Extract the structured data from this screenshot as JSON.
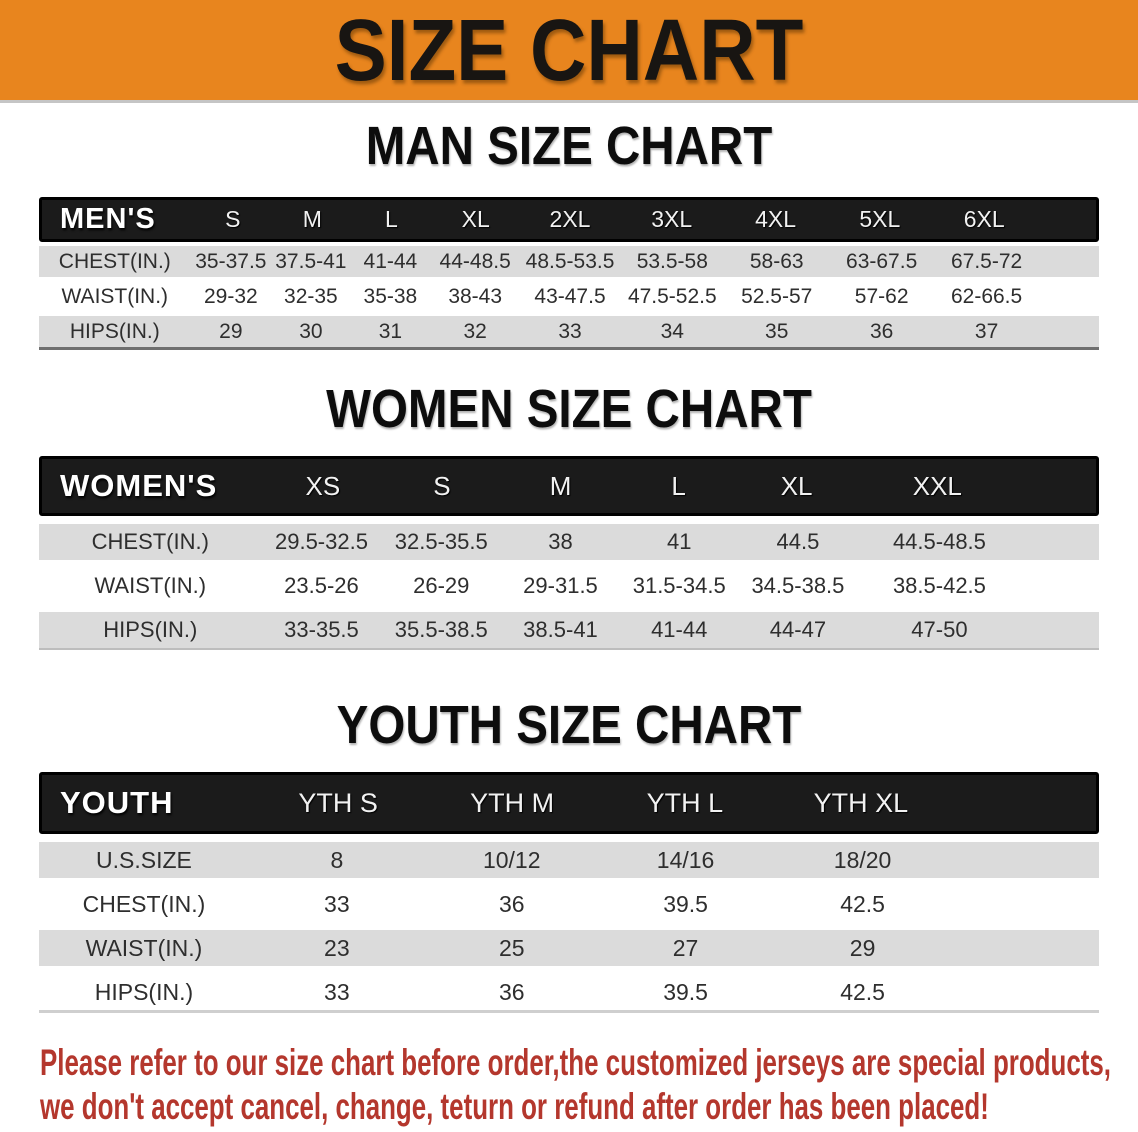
{
  "banner": {
    "title": "SIZE CHART",
    "bg_color": "#e8851e",
    "text_color": "#181512"
  },
  "colors": {
    "header_bar": "#1b1b1b",
    "row_gray": "#dbdbdb",
    "row_white": "#ffffff",
    "footer_red": "#b4372d"
  },
  "footer": {
    "line1": "Please refer to our size chart before order,the customized jerseys are special products,",
    "line2": "we don't accept cancel, change, teturn or refund after order has been placed!"
  },
  "chart_data": [
    {
      "type": "table",
      "title": "MAN SIZE CHART",
      "corner": "MEN'S",
      "columns": [
        "S",
        "M",
        "L",
        "XL",
        "2XL",
        "3XL",
        "4XL",
        "5XL",
        "6XL"
      ],
      "rows": [
        {
          "label": "CHEST(IN.)",
          "values": [
            "35-37.5",
            "37.5-41",
            "41-44",
            "44-48.5",
            "48.5-53.5",
            "53.5-58",
            "58-63",
            "63-67.5",
            "67.5-72"
          ]
        },
        {
          "label": "WAIST(IN.)",
          "values": [
            "29-32",
            "32-35",
            "35-38",
            "38-43",
            "43-47.5",
            "47.5-52.5",
            "52.5-57",
            "57-62",
            "62-66.5"
          ]
        },
        {
          "label": "HIPS(IN.)",
          "values": [
            "29",
            "30",
            "31",
            "32",
            "33",
            "34",
            "35",
            "36",
            "37"
          ]
        }
      ]
    },
    {
      "type": "table",
      "title": "WOMEN SIZE CHART",
      "corner": "WOMEN'S",
      "columns": [
        "XS",
        "S",
        "M",
        "L",
        "XL",
        "XXL"
      ],
      "rows": [
        {
          "label": "CHEST(IN.)",
          "values": [
            "29.5-32.5",
            "32.5-35.5",
            "38",
            "41",
            "44.5",
            "44.5-48.5"
          ]
        },
        {
          "label": "WAIST(IN.)",
          "values": [
            "23.5-26",
            "26-29",
            "29-31.5",
            "31.5-34.5",
            "34.5-38.5",
            "38.5-42.5"
          ]
        },
        {
          "label": "HIPS(IN.)",
          "values": [
            "33-35.5",
            "35.5-38.5",
            "38.5-41",
            "41-44",
            "44-47",
            "47-50"
          ]
        }
      ]
    },
    {
      "type": "table",
      "title": "YOUTH SIZE CHART",
      "corner": "YOUTH",
      "columns": [
        "YTH S",
        "YTH M",
        "YTH L",
        "YTH XL"
      ],
      "rows": [
        {
          "label": "U.S.SIZE",
          "values": [
            "8",
            "10/12",
            "14/16",
            "18/20"
          ]
        },
        {
          "label": "CHEST(IN.)",
          "values": [
            "33",
            "36",
            "39.5",
            "42.5"
          ]
        },
        {
          "label": "WAIST(IN.)",
          "values": [
            "23",
            "25",
            "27",
            "29"
          ]
        },
        {
          "label": "HIPS(IN.)",
          "values": [
            "33",
            "36",
            "39.5",
            "42.5"
          ]
        }
      ]
    }
  ]
}
